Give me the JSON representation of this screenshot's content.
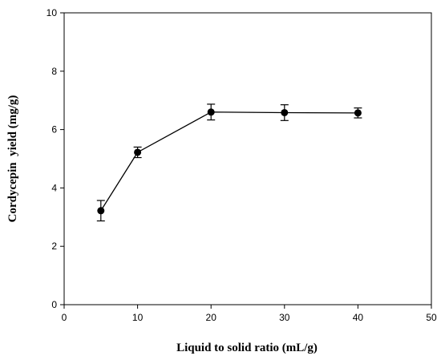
{
  "chart_data": {
    "type": "line",
    "title": "",
    "xlabel": "Liquid to solid ratio (mL/g)",
    "ylabel": "Cordycepin  yield (mg/g)",
    "xlim": [
      0,
      50
    ],
    "ylim": [
      0,
      10
    ],
    "x_ticks": [
      0,
      10,
      20,
      30,
      40,
      50
    ],
    "y_ticks": [
      0,
      2,
      4,
      6,
      8,
      10
    ],
    "x_tick_labels": [
      "0",
      "10",
      "20",
      "30",
      "40",
      "50"
    ],
    "y_tick_labels": [
      "0",
      "2",
      "4",
      "6",
      "8",
      "10"
    ],
    "grid": false,
    "series": [
      {
        "x": [
          5,
          10,
          20,
          30,
          40
        ],
        "values": [
          3.22,
          5.22,
          6.6,
          6.58,
          6.57
        ],
        "error": [
          0.35,
          0.18,
          0.27,
          0.27,
          0.17
        ],
        "color": "#000000",
        "marker": "circle"
      }
    ]
  }
}
